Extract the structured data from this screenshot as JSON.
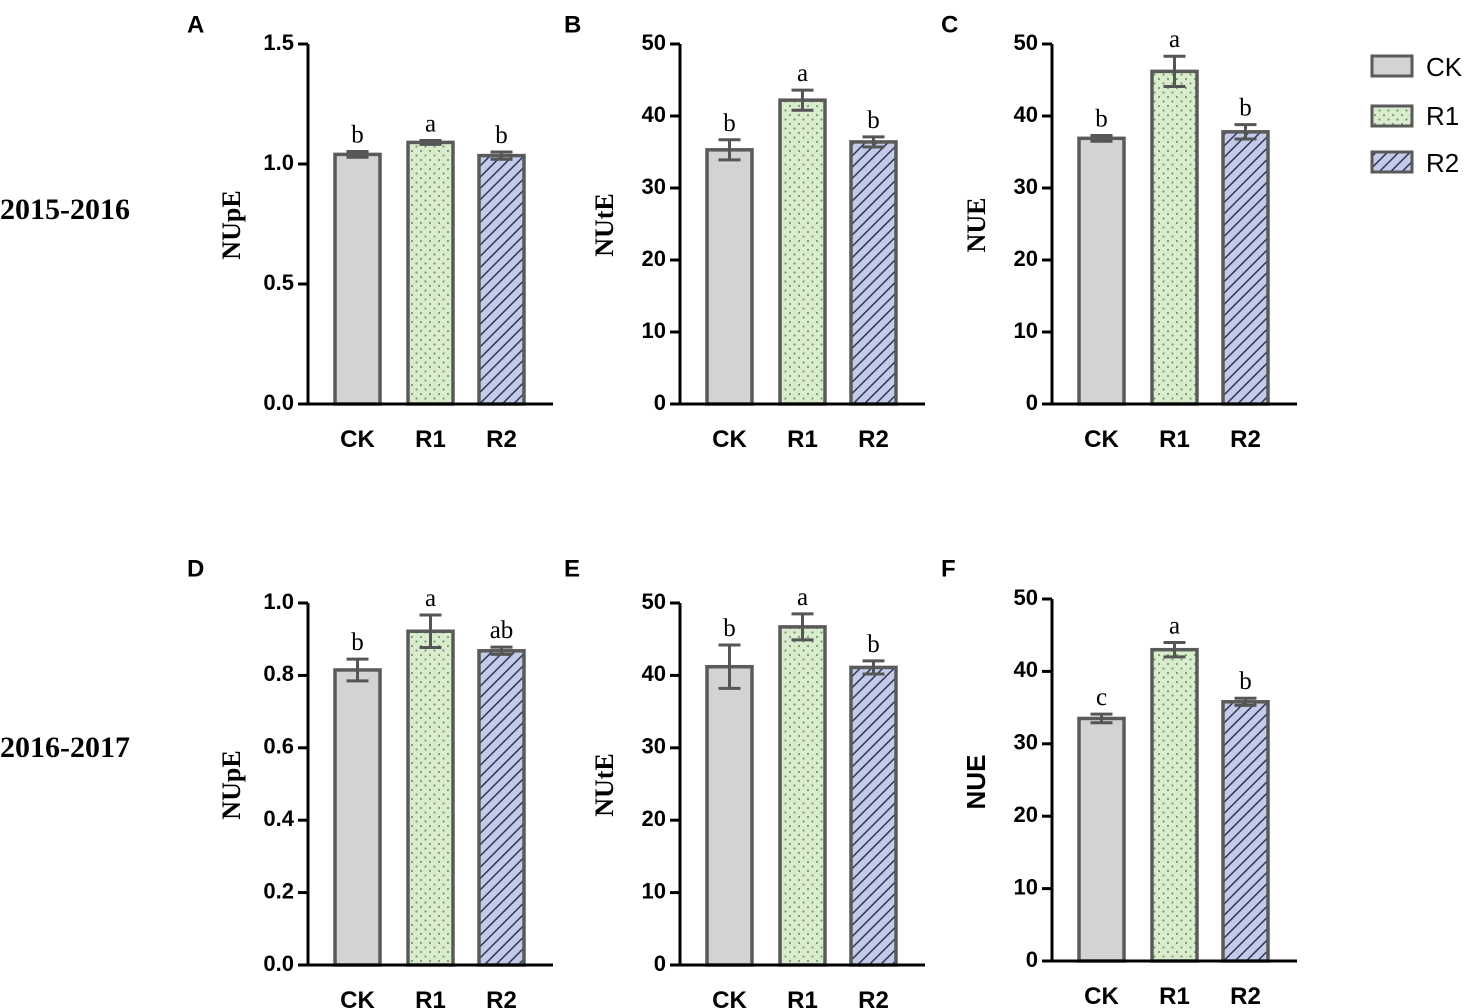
{
  "row_labels": [
    "2015-2016",
    "2016-2017"
  ],
  "legend": {
    "entries": [
      {
        "name": "CK",
        "pattern": "solid"
      },
      {
        "name": "R1",
        "pattern": "dots"
      },
      {
        "name": "R2",
        "pattern": "hatch"
      }
    ]
  },
  "colors": {
    "CK": "#d3d3d3",
    "R1": "#d9ecce",
    "R2": "#c4cbe6",
    "bar_edge": "#5a5a5a",
    "dot": "#7a9a6a",
    "hatch": "#2c3561"
  },
  "chart_data": [
    {
      "panel": "A",
      "type": "bar",
      "row": "2015-2016",
      "ylabel": "NUpE",
      "ylabel_font": "serif",
      "categories": [
        "CK",
        "R1",
        "R2"
      ],
      "values": [
        1.04,
        1.09,
        1.035
      ],
      "errors": [
        0.012,
        0.008,
        0.015
      ],
      "sig_letters": [
        "b",
        "a",
        "b"
      ],
      "ylim": [
        0,
        1.5
      ],
      "yticks": [
        "0.0",
        "0.5",
        "1.0",
        "1.5"
      ]
    },
    {
      "panel": "B",
      "type": "bar",
      "row": "2015-2016",
      "ylabel": "NUtE",
      "ylabel_font": "serif",
      "categories": [
        "CK",
        "R1",
        "R2"
      ],
      "values": [
        35.3,
        42.2,
        36.4
      ],
      "errors": [
        1.4,
        1.4,
        0.7
      ],
      "sig_letters": [
        "b",
        "a",
        "b"
      ],
      "ylim": [
        0,
        50
      ],
      "yticks": [
        "0",
        "10",
        "20",
        "30",
        "40",
        "50"
      ]
    },
    {
      "panel": "C",
      "type": "bar",
      "row": "2015-2016",
      "ylabel": "NUE",
      "ylabel_font": "serif",
      "categories": [
        "CK",
        "R1",
        "R2"
      ],
      "values": [
        36.9,
        46.2,
        37.8
      ],
      "errors": [
        0.4,
        2.1,
        1.0
      ],
      "sig_letters": [
        "b",
        "a",
        "b"
      ],
      "ylim": [
        0,
        50
      ],
      "yticks": [
        "0",
        "10",
        "20",
        "30",
        "40",
        "50"
      ]
    },
    {
      "panel": "D",
      "type": "bar",
      "row": "2016-2017",
      "ylabel": "NUpE",
      "ylabel_font": "serif",
      "categories": [
        "CK",
        "R1",
        "R2"
      ],
      "values": [
        0.815,
        0.922,
        0.868
      ],
      "errors": [
        0.03,
        0.045,
        0.01
      ],
      "sig_letters": [
        "b",
        "a",
        "ab"
      ],
      "ylim": [
        0,
        1.0
      ],
      "yticks": [
        "0.0",
        "0.2",
        "0.4",
        "0.6",
        "0.8",
        "1.0"
      ]
    },
    {
      "panel": "E",
      "type": "bar",
      "row": "2016-2017",
      "ylabel": "NUtE",
      "ylabel_font": "serif",
      "categories": [
        "CK",
        "R1",
        "R2"
      ],
      "values": [
        41.2,
        46.7,
        41.1
      ],
      "errors": [
        3.0,
        1.8,
        0.9
      ],
      "sig_letters": [
        "b",
        "a",
        "b"
      ],
      "ylim": [
        0,
        50
      ],
      "yticks": [
        "0",
        "10",
        "20",
        "30",
        "40",
        "50"
      ]
    },
    {
      "panel": "F",
      "type": "bar",
      "row": "2016-2017",
      "ylabel": "NUE",
      "ylabel_font": "sans",
      "categories": [
        "CK",
        "R1",
        "R2"
      ],
      "values": [
        33.5,
        43.0,
        35.8
      ],
      "errors": [
        0.6,
        1.0,
        0.5
      ],
      "sig_letters": [
        "c",
        "a",
        "b"
      ],
      "ylim": [
        0,
        50
      ],
      "yticks": [
        "0",
        "10",
        "20",
        "30",
        "40",
        "50"
      ]
    }
  ]
}
